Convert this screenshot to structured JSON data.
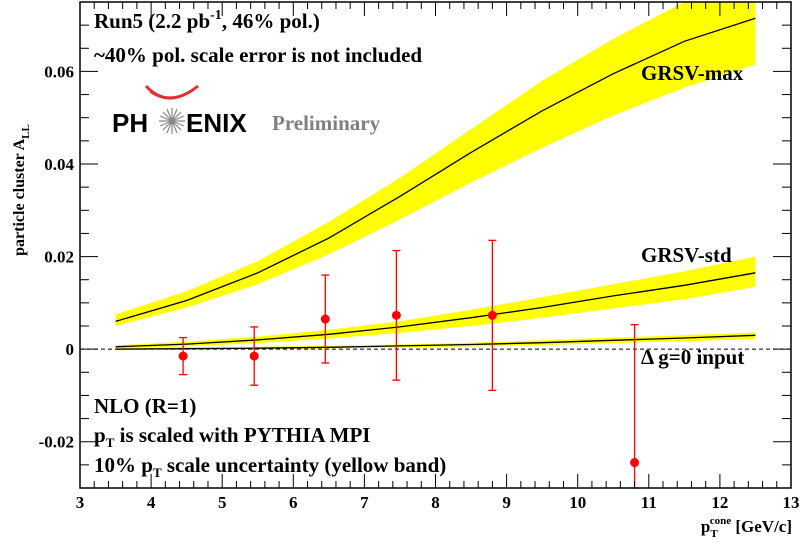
{
  "chart_data": {
    "type": "line",
    "xlim": [
      3,
      13
    ],
    "ylim": [
      -0.03,
      0.075
    ],
    "xticks": [
      3,
      4,
      5,
      6,
      7,
      8,
      9,
      10,
      11,
      12,
      13
    ],
    "yticks": [
      -0.02,
      0,
      0.02,
      0.04,
      0.06
    ],
    "xtick_labels": [
      "3",
      "4",
      "5",
      "6",
      "7",
      "8",
      "9",
      "10",
      "11",
      "12",
      "13"
    ],
    "ytick_labels": [
      "-0.02",
      "0",
      "0.02",
      "0.04",
      "0.06"
    ],
    "xlabel": {
      "main": "p",
      "sub": "T",
      "sup": "cone",
      "tail": " [GeV/c]"
    },
    "ylabel": {
      "main": "particle cluster A",
      "sub": "LL"
    },
    "grid": false,
    "zero_line": 0,
    "bands": [
      {
        "name": "GRSV-max",
        "x": [
          3.5,
          4.5,
          5.5,
          6.5,
          7.5,
          8.5,
          9.5,
          10.5,
          11.5,
          12.5
        ],
        "center": [
          0.006,
          0.0105,
          0.0165,
          0.024,
          0.033,
          0.0425,
          0.0515,
          0.0595,
          0.0665,
          0.0715
        ],
        "lower": [
          0.005,
          0.009,
          0.014,
          0.0205,
          0.028,
          0.036,
          0.0435,
          0.0505,
          0.0565,
          0.0615
        ],
        "upper": [
          0.0075,
          0.0125,
          0.019,
          0.0275,
          0.037,
          0.0475,
          0.058,
          0.067,
          0.075,
          0.078
        ]
      },
      {
        "name": "GRSV-std",
        "x": [
          3.5,
          4.5,
          5.5,
          6.5,
          7.5,
          8.5,
          9.5,
          10.5,
          11.5,
          12.5
        ],
        "center": [
          0.0005,
          0.0011,
          0.002,
          0.0032,
          0.0048,
          0.0068,
          0.009,
          0.0115,
          0.0138,
          0.0165
        ],
        "lower": [
          0.0002,
          0.0006,
          0.0013,
          0.0023,
          0.0035,
          0.005,
          0.0068,
          0.0088,
          0.0108,
          0.0135
        ],
        "upper": [
          0.0008,
          0.0016,
          0.0027,
          0.0042,
          0.006,
          0.0085,
          0.0112,
          0.014,
          0.0168,
          0.02
        ]
      },
      {
        "name": "Δ g=0 input",
        "x": [
          3.5,
          4.5,
          5.5,
          6.5,
          7.5,
          8.5,
          9.5,
          10.5,
          11.5,
          12.5
        ],
        "center": [
          0.0,
          0.0001,
          0.0002,
          0.0004,
          0.0007,
          0.001,
          0.0014,
          0.0019,
          0.0024,
          0.003
        ],
        "lower": [
          -0.0002,
          -0.0001,
          0.0,
          0.0002,
          0.0004,
          0.0006,
          0.0009,
          0.0013,
          0.0017,
          0.0022
        ],
        "upper": [
          0.0002,
          0.0004,
          0.0005,
          0.0007,
          0.001,
          0.0014,
          0.0019,
          0.0025,
          0.003,
          0.0036
        ]
      }
    ],
    "curve_labels": [
      "GRSV-max",
      "GRSV-std",
      "Δ g=0 input"
    ],
    "points": {
      "x": [
        4.45,
        5.45,
        6.45,
        7.45,
        8.8,
        10.8
      ],
      "y": [
        -0.0015,
        -0.0015,
        0.0065,
        0.0073,
        0.0073,
        -0.0245
      ],
      "err": [
        0.004,
        0.0063,
        0.0095,
        0.014,
        0.0162,
        0.0298
      ],
      "color": "#ff0000"
    },
    "band_color": "#ffff00",
    "curve_color": "#000000"
  },
  "annotations": {
    "run_line1": {
      "a": "Run5 (2.2 pb",
      "sup": "-1",
      "b": ", 46% pol.)"
    },
    "run_line2": "~40% pol. scale error is not included",
    "nlo": "NLO (R=1)",
    "pt_scaled": {
      "a": "p",
      "sub": "T",
      "b": " is scaled with PYTHIA MPI"
    },
    "pt_uncert": {
      "a": "10% p",
      "sub": "T",
      "b": " scale uncertainty (yellow band)"
    }
  },
  "logo": {
    "text_left": "PH",
    "text_right": "ENIX",
    "tag": "Preliminary",
    "arc_color": "#e03030",
    "tag_color": "#808080"
  }
}
